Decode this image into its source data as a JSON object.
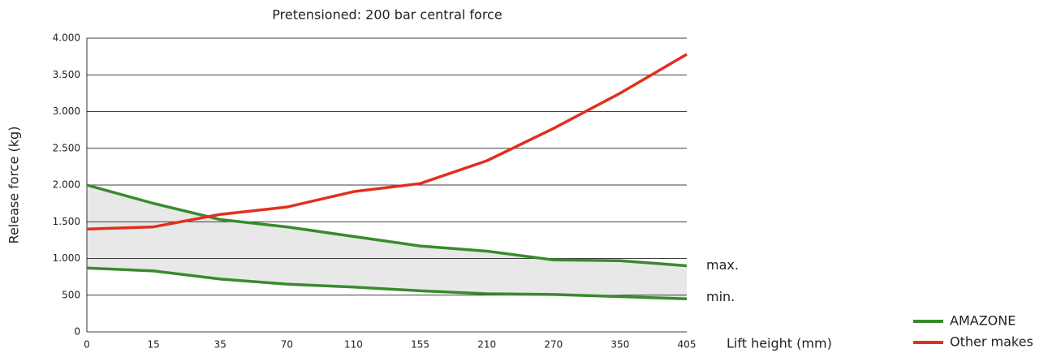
{
  "chart_data": {
    "type": "line",
    "title": "Pretensioned: 200 bar central force",
    "y_label": "Release force (kg)",
    "x_label": "Lift height (mm)",
    "categories": [
      "0",
      "15",
      "35",
      "70",
      "110",
      "155",
      "210",
      "270",
      "350",
      "405"
    ],
    "series": [
      {
        "name": "AMAZONE",
        "color": "#3a8a2e",
        "max": [
          2000,
          1750,
          1530,
          1430,
          1300,
          1170,
          1100,
          980,
          970,
          900
        ],
        "min": [
          870,
          830,
          720,
          650,
          610,
          560,
          520,
          510,
          480,
          450
        ],
        "max_label": "max.",
        "min_label": "min."
      },
      {
        "name": "Other makes",
        "color": "#e0301e",
        "values": [
          1400,
          1430,
          1600,
          1700,
          1910,
          2020,
          2330,
          2770,
          3250,
          3780
        ]
      }
    ],
    "ylim": [
      0,
      4000
    ],
    "yticks": [
      0,
      {
        "value": 500,
        "label": "500"
      },
      {
        "value": 1000,
        "label": "1.000"
      },
      {
        "value": 1500,
        "label": "1.500"
      },
      {
        "value": 2000,
        "label": "2.000"
      },
      {
        "value": 2500,
        "label": "2.500"
      },
      {
        "value": 3000,
        "label": "3.000"
      },
      {
        "value": 3500,
        "label": "3.500"
      },
      {
        "value": 4000,
        "label": "4.000"
      }
    ],
    "grid": true,
    "legend": "bottom-right",
    "band_color": "#e8e8e8"
  }
}
